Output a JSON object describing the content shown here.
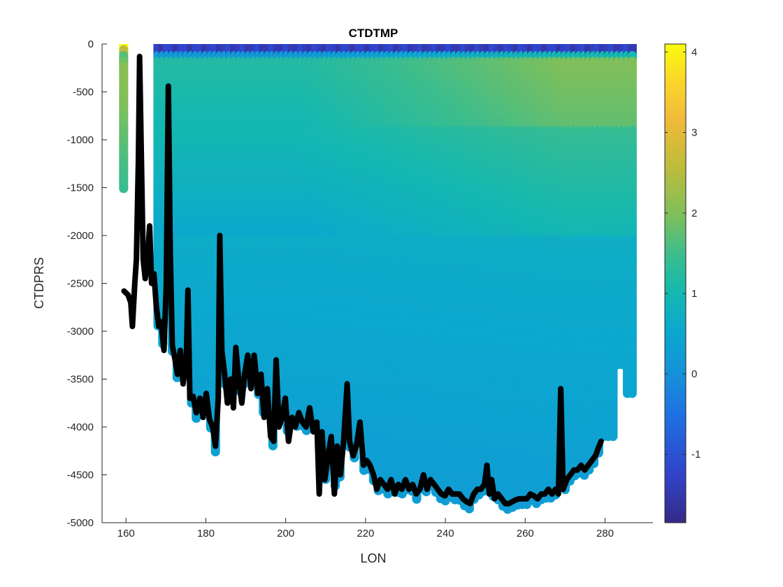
{
  "chart_data": {
    "type": "scatter",
    "title": "CTDTMP",
    "xlabel": "LON",
    "ylabel": "CTDPRS",
    "xlim": [
      154,
      292
    ],
    "ylim": [
      -5000,
      0
    ],
    "xticks": [
      160,
      180,
      200,
      220,
      240,
      260,
      280
    ],
    "yticks": [
      0,
      -500,
      -1000,
      -1500,
      -2000,
      -2500,
      -3000,
      -3500,
      -4000,
      -4500,
      -5000
    ],
    "colorbar": {
      "colormap": "parula",
      "clim": [
        -1.85,
        4.1
      ],
      "ticks": [
        4,
        3,
        2,
        1,
        0,
        -1
      ]
    },
    "grid": false,
    "bottom_profile": {
      "color": "#000000",
      "points": [
        [
          159.5,
          -2580
        ],
        [
          160.5,
          -2620
        ],
        [
          161.2,
          -2700
        ],
        [
          161.6,
          -2950
        ],
        [
          162.2,
          -2500
        ],
        [
          162.6,
          -2250
        ],
        [
          163.1,
          -1200
        ],
        [
          163.4,
          -130
        ],
        [
          163.8,
          -1100
        ],
        [
          164.3,
          -2250
        ],
        [
          164.8,
          -2450
        ],
        [
          165.3,
          -2300
        ],
        [
          165.9,
          -1900
        ],
        [
          166.4,
          -2500
        ],
        [
          167.0,
          -2400
        ],
        [
          167.6,
          -2750
        ],
        [
          168.2,
          -2950
        ],
        [
          168.8,
          -2900
        ],
        [
          169.5,
          -3200
        ],
        [
          170.1,
          -2500
        ],
        [
          170.6,
          -440
        ],
        [
          171.1,
          -2200
        ],
        [
          171.6,
          -3150
        ],
        [
          172.3,
          -3300
        ],
        [
          172.9,
          -3450
        ],
        [
          173.6,
          -3200
        ],
        [
          174.3,
          -3550
        ],
        [
          175.1,
          -3300
        ],
        [
          175.5,
          -2570
        ],
        [
          176.0,
          -3700
        ],
        [
          176.8,
          -3680
        ],
        [
          177.6,
          -3850
        ],
        [
          178.5,
          -3700
        ],
        [
          179.3,
          -3900
        ],
        [
          180.1,
          -3650
        ],
        [
          180.9,
          -3920
        ],
        [
          181.7,
          -4000
        ],
        [
          182.4,
          -4200
        ],
        [
          183.1,
          -3700
        ],
        [
          183.5,
          -2000
        ],
        [
          184.0,
          -3200
        ],
        [
          184.7,
          -3450
        ],
        [
          185.4,
          -3750
        ],
        [
          186.2,
          -3500
        ],
        [
          186.9,
          -3800
        ],
        [
          187.5,
          -3170
        ],
        [
          188.2,
          -3500
        ],
        [
          189.0,
          -3750
        ],
        [
          189.7,
          -3450
        ],
        [
          190.5,
          -3250
        ],
        [
          191.3,
          -3600
        ],
        [
          192.1,
          -3250
        ],
        [
          193.0,
          -3650
        ],
        [
          193.8,
          -3450
        ],
        [
          194.6,
          -3900
        ],
        [
          195.4,
          -3600
        ],
        [
          196.2,
          -4100
        ],
        [
          197.0,
          -4150
        ],
        [
          197.6,
          -3300
        ],
        [
          198.3,
          -4000
        ],
        [
          199.1,
          -3900
        ],
        [
          199.9,
          -3700
        ],
        [
          200.7,
          -4150
        ],
        [
          201.6,
          -3900
        ],
        [
          202.4,
          -4000
        ],
        [
          203.3,
          -3850
        ],
        [
          204.2,
          -3950
        ],
        [
          205.1,
          -4000
        ],
        [
          206.0,
          -3800
        ],
        [
          206.9,
          -4050
        ],
        [
          207.8,
          -3950
        ],
        [
          208.4,
          -4700
        ],
        [
          209.1,
          -4050
        ],
        [
          209.8,
          -4550
        ],
        [
          210.6,
          -4300
        ],
        [
          211.4,
          -4100
        ],
        [
          212.2,
          -4700
        ],
        [
          212.9,
          -4200
        ],
        [
          213.7,
          -4500
        ],
        [
          214.5,
          -4150
        ],
        [
          215.4,
          -3550
        ],
        [
          216.0,
          -4150
        ],
        [
          216.9,
          -4300
        ],
        [
          217.7,
          -4200
        ],
        [
          218.6,
          -3950
        ],
        [
          219.5,
          -4400
        ],
        [
          220.3,
          -4350
        ],
        [
          221.1,
          -4400
        ],
        [
          222.0,
          -4500
        ],
        [
          222.8,
          -4650
        ],
        [
          223.7,
          -4550
        ],
        [
          224.6,
          -4600
        ],
        [
          225.5,
          -4650
        ],
        [
          226.4,
          -4550
        ],
        [
          227.3,
          -4700
        ],
        [
          228.2,
          -4600
        ],
        [
          229.1,
          -4650
        ],
        [
          230.0,
          -4550
        ],
        [
          230.9,
          -4650
        ],
        [
          231.8,
          -4600
        ],
        [
          232.7,
          -4700
        ],
        [
          233.6,
          -4650
        ],
        [
          234.5,
          -4500
        ],
        [
          235.4,
          -4650
        ],
        [
          236.3,
          -4550
        ],
        [
          237.2,
          -4600
        ],
        [
          238.1,
          -4650
        ],
        [
          239.0,
          -4700
        ],
        [
          239.9,
          -4720
        ],
        [
          240.8,
          -4650
        ],
        [
          241.7,
          -4700
        ],
        [
          242.6,
          -4700
        ],
        [
          243.5,
          -4700
        ],
        [
          244.4,
          -4750
        ],
        [
          245.3,
          -4780
        ],
        [
          246.2,
          -4800
        ],
        [
          247.1,
          -4700
        ],
        [
          248.0,
          -4650
        ],
        [
          248.9,
          -4650
        ],
        [
          249.8,
          -4600
        ],
        [
          250.4,
          -4400
        ],
        [
          251.0,
          -4700
        ],
        [
          251.6,
          -4550
        ],
        [
          252.3,
          -4750
        ],
        [
          253.2,
          -4700
        ],
        [
          254.1,
          -4750
        ],
        [
          255.0,
          -4800
        ],
        [
          255.9,
          -4800
        ],
        [
          256.8,
          -4780
        ],
        [
          257.7,
          -4760
        ],
        [
          258.6,
          -4750
        ],
        [
          259.5,
          -4750
        ],
        [
          260.4,
          -4750
        ],
        [
          261.3,
          -4700
        ],
        [
          262.2,
          -4720
        ],
        [
          263.1,
          -4750
        ],
        [
          264.0,
          -4700
        ],
        [
          264.9,
          -4700
        ],
        [
          265.8,
          -4650
        ],
        [
          266.7,
          -4700
        ],
        [
          267.6,
          -4650
        ],
        [
          268.3,
          -4700
        ],
        [
          268.9,
          -3600
        ],
        [
          269.5,
          -4650
        ],
        [
          270.4,
          -4550
        ],
        [
          271.3,
          -4500
        ],
        [
          272.2,
          -4450
        ],
        [
          273.1,
          -4450
        ],
        [
          274.0,
          -4400
        ],
        [
          274.9,
          -4450
        ],
        [
          275.8,
          -4400
        ],
        [
          276.7,
          -4350
        ],
        [
          277.6,
          -4300
        ],
        [
          278.5,
          -4200
        ],
        [
          279.0,
          -4150
        ]
      ]
    },
    "casts": {
      "note_values": "each cast: longitude, max pressure (negative), and CTDTMP profile (degC) by depth",
      "profile_levels": [
        0,
        -100,
        -250,
        -600,
        -1200,
        -1600,
        -2500,
        -5000
      ],
      "stations": [
        {
          "lon": 159.4,
          "bottom": -1510,
          "temps": [
            4.1,
            1.6,
            2.1,
            2.0,
            1.6,
            1.4,
            1.0,
            0.6
          ]
        }
      ]
    }
  }
}
